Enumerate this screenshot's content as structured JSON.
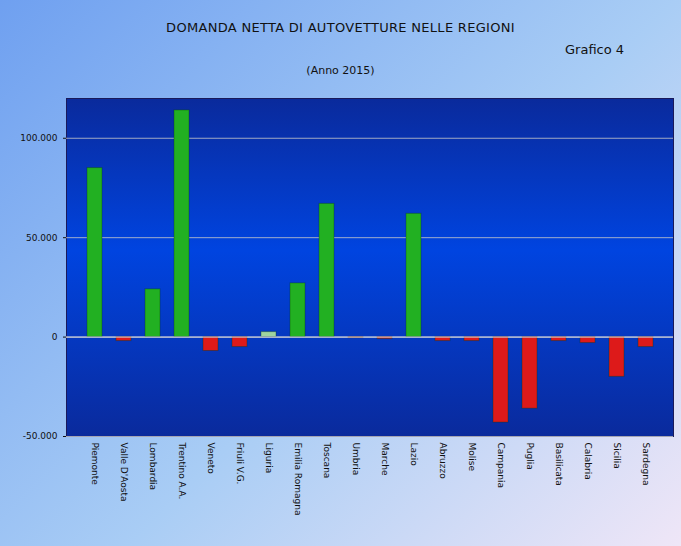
{
  "chart_data": {
    "type": "bar",
    "title": "DOMANDA  NETTA DI AUTOVETTURE NELLE REGIONI",
    "subtitle": "(Anno 2015)",
    "annotations": [
      "Grafico 4"
    ],
    "categories": [
      "Piemonte",
      "Valle D'Aosta",
      "Lombardia",
      "Trentino A.A.",
      "Veneto",
      "Friuli V.G.",
      "Liguria",
      "Emilia Romagna",
      "Toscana",
      "Umbria",
      "Marche",
      "Lazio",
      "Abruzzo",
      "Molise",
      "Campania",
      "Puglia",
      "Basilicata",
      "Calabria",
      "Sicilia",
      "Sardegna"
    ],
    "values": [
      85000,
      -2000,
      24000,
      114000,
      -7000,
      -5000,
      2500,
      27000,
      67000,
      -500,
      -1000,
      62000,
      -2000,
      -2000,
      -43000,
      -36000,
      -2000,
      -3000,
      -20000,
      -5000
    ],
    "colors": [
      "#22b022",
      "#dd1a1a",
      "#22b022",
      "#22b022",
      "#dd1a1a",
      "#dd1a1a",
      "#9fd39f",
      "#22b022",
      "#22b022",
      "#dd1a1a",
      "#dd1a1a",
      "#22b022",
      "#dd1a1a",
      "#dd1a1a",
      "#dd1a1a",
      "#dd1a1a",
      "#dd1a1a",
      "#dd1a1a",
      "#dd1a1a",
      "#dd1a1a"
    ],
    "ylim": [
      -50000,
      120000
    ],
    "yticks": [
      {
        "value": -50000,
        "label": "-50.000"
      },
      0,
      {
        "value": 50000,
        "label": "50.000"
      },
      {
        "value": 100000,
        "label": "100.000"
      }
    ],
    "grid": true
  }
}
